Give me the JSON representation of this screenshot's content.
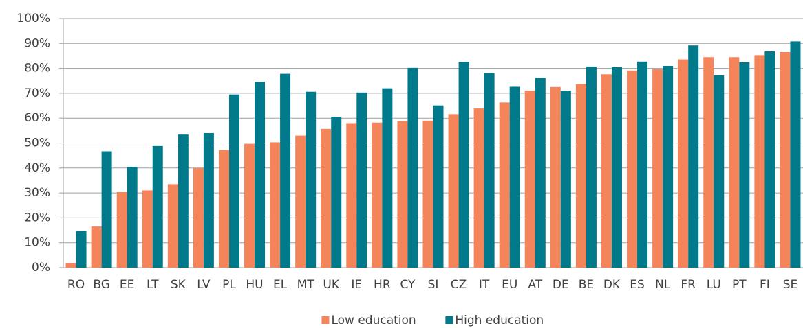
{
  "chart_data": {
    "type": "bar",
    "categories": [
      "RO",
      "BG",
      "EE",
      "LT",
      "SK",
      "LV",
      "PL",
      "HU",
      "EL",
      "MT",
      "UK",
      "IE",
      "HR",
      "CY",
      "SI",
      "CZ",
      "IT",
      "EU",
      "AT",
      "DE",
      "BE",
      "DK",
      "ES",
      "NL",
      "FR",
      "LU",
      "PT",
      "FI",
      "SE"
    ],
    "series": [
      {
        "name": "Low education",
        "color": "#f4845a",
        "values": [
          1.8,
          16.5,
          30.3,
          31,
          33.5,
          40,
          47.2,
          49.7,
          50.3,
          53,
          55.7,
          58,
          58.2,
          58.8,
          59,
          61.6,
          63.9,
          66.3,
          71,
          72.5,
          73.7,
          77.6,
          79.1,
          79.6,
          83.6,
          84.5,
          84.5,
          85.3,
          86.5
        ]
      },
      {
        "name": "High education",
        "color": "#007a8a",
        "values": [
          14.7,
          46.7,
          40.5,
          48.8,
          53.4,
          54,
          69.5,
          74.6,
          77.8,
          70.6,
          60.6,
          70.3,
          72,
          80.2,
          65.1,
          82.6,
          78.1,
          72.6,
          76.2,
          71,
          80.7,
          80.5,
          82.7,
          81,
          89.2,
          77.2,
          82.4,
          86.8,
          90.8
        ]
      }
    ],
    "ylim": [
      0,
      100
    ],
    "yticks": [
      {
        "value": 0,
        "label": "0%"
      },
      {
        "value": 10,
        "label": "10%"
      },
      {
        "value": 20,
        "label": "20%"
      },
      {
        "value": 30,
        "label": "30%"
      },
      {
        "value": 40,
        "label": "40%"
      },
      {
        "value": 50,
        "label": "50%"
      },
      {
        "value": 60,
        "label": "60%"
      },
      {
        "value": 70,
        "label": "70%"
      },
      {
        "value": 80,
        "label": "80%"
      },
      {
        "value": 90,
        "label": "90%"
      },
      {
        "value": 100,
        "label": "100%"
      }
    ],
    "grid": true,
    "legend": "bottom"
  }
}
